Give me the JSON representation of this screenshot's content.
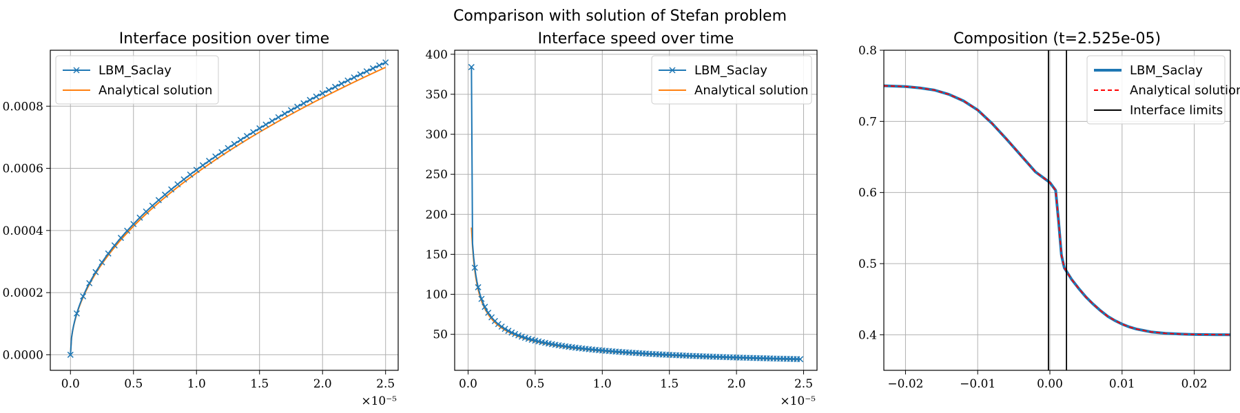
{
  "figure": {
    "suptitle": "Comparison with solution of Stefan problem",
    "colors": {
      "lbm": "#1f77b4",
      "analytical": "#ff7f0e",
      "analytical_dashed": "#ff0000",
      "limits": "#000000"
    }
  },
  "chart_data": [
    {
      "type": "line",
      "title": "Interface position over time",
      "xlabel": "",
      "ylabel": "",
      "xlim": [
        -0.16,
        2.6
      ],
      "ylim": [
        -5e-05,
        0.00098
      ],
      "x_multiplier": "×10⁻⁵",
      "xticks": [
        0,
        0.5,
        1,
        1.5,
        2,
        2.5
      ],
      "xtick_labels": [
        "0.0",
        "0.5",
        "1.0",
        "1.5",
        "2.0",
        "2.5"
      ],
      "yticks": [
        0,
        0.0002,
        0.0004,
        0.0006,
        0.0008
      ],
      "ytick_labels": [
        "0.0000",
        "0.0002",
        "0.0004",
        "0.0006",
        "0.0008"
      ],
      "grid": true,
      "legend_position": "upper-left",
      "series": [
        {
          "name": "LBM_Saclay",
          "marker": "x",
          "color": "#1f77b4",
          "model": "sqrt",
          "x_range": [
            0,
            2.5
          ],
          "coef": 0.000595,
          "offset": 0,
          "first_point": [
            0,
            0
          ],
          "marker_step": 0.05
        },
        {
          "name": "Analytical solution",
          "marker": "none",
          "color": "#ff7f0e",
          "model": "sqrt",
          "x_range": [
            0,
            2.5
          ],
          "coef": 0.000585,
          "offset": 0
        }
      ]
    },
    {
      "type": "line",
      "title": "Interface speed over time",
      "xlabel": "",
      "ylabel": "",
      "xlim": [
        -0.1,
        2.6
      ],
      "ylim": [
        5,
        405
      ],
      "x_multiplier": "×10⁻⁵",
      "xticks": [
        0,
        0.5,
        1,
        1.5,
        2,
        2.5
      ],
      "xtick_labels": [
        "0.0",
        "0.5",
        "1.0",
        "1.5",
        "2.0",
        "2.5"
      ],
      "yticks": [
        50,
        100,
        150,
        200,
        250,
        300,
        350,
        400
      ],
      "ytick_labels": [
        "50",
        "100",
        "150",
        "200",
        "250",
        "300",
        "350",
        "400"
      ],
      "grid": true,
      "legend_position": "upper-right",
      "series": [
        {
          "name": "LBM_Saclay",
          "marker": "x",
          "color": "#1f77b4",
          "model": "invsqrt",
          "x_range": [
            0.025,
            2.475
          ],
          "coef": 29.8,
          "first_point": [
            0.025,
            384
          ],
          "marker_step": 0.025
        },
        {
          "name": "Analytical solution",
          "marker": "none",
          "color": "#ff7f0e",
          "model": "invsqrt",
          "x_range": [
            0.025,
            2.475
          ],
          "coef": 29.0
        }
      ]
    },
    {
      "type": "line",
      "title": "Composition (t=2.525e-05)",
      "xlabel": "",
      "ylabel": "",
      "xlim": [
        -0.023,
        0.025
      ],
      "ylim": [
        0.35,
        0.8
      ],
      "xticks": [
        -0.02,
        -0.01,
        0,
        0.01,
        0.02
      ],
      "xtick_labels": [
        "−0.02",
        "−0.01",
        "0.00",
        "0.01",
        "0.02"
      ],
      "yticks": [
        0.4,
        0.5,
        0.6,
        0.7,
        0.8
      ],
      "ytick_labels": [
        "0.4",
        "0.5",
        "0.6",
        "0.7",
        "0.8"
      ],
      "grid": true,
      "legend_position": "upper-right",
      "interface_limits": [
        -0.0002,
        0.0023
      ],
      "series": [
        {
          "name": "LBM_Saclay",
          "style": "solid-thick",
          "color": "#1f77b4",
          "x": [
            -0.023,
            -0.02,
            -0.018,
            -0.016,
            -0.014,
            -0.012,
            -0.01,
            -0.008,
            -0.006,
            -0.004,
            -0.002,
            0.0,
            0.0008,
            0.0012,
            0.0016,
            0.002,
            0.0025,
            0.003,
            0.004,
            0.005,
            0.006,
            0.007,
            0.008,
            0.009,
            0.01,
            0.011,
            0.012,
            0.013,
            0.014,
            0.015,
            0.016,
            0.017,
            0.018,
            0.019,
            0.02,
            0.021,
            0.022,
            0.023,
            0.024,
            0.025
          ],
          "y": [
            0.75,
            0.749,
            0.747,
            0.744,
            0.738,
            0.729,
            0.716,
            0.697,
            0.675,
            0.652,
            0.629,
            0.614,
            0.603,
            0.56,
            0.512,
            0.494,
            0.486,
            0.478,
            0.465,
            0.453,
            0.443,
            0.434,
            0.426,
            0.42,
            0.415,
            0.411,
            0.408,
            0.406,
            0.404,
            0.403,
            0.402,
            0.4015,
            0.401,
            0.4007,
            0.4005,
            0.4003,
            0.4002,
            0.4001,
            0.4001,
            0.4
          ]
        },
        {
          "name": "Analytical solution",
          "style": "dashed",
          "color": "#ff0000",
          "same_as": 0
        },
        {
          "name": "Interface limits",
          "style": "solid",
          "color": "#000000"
        }
      ]
    }
  ]
}
